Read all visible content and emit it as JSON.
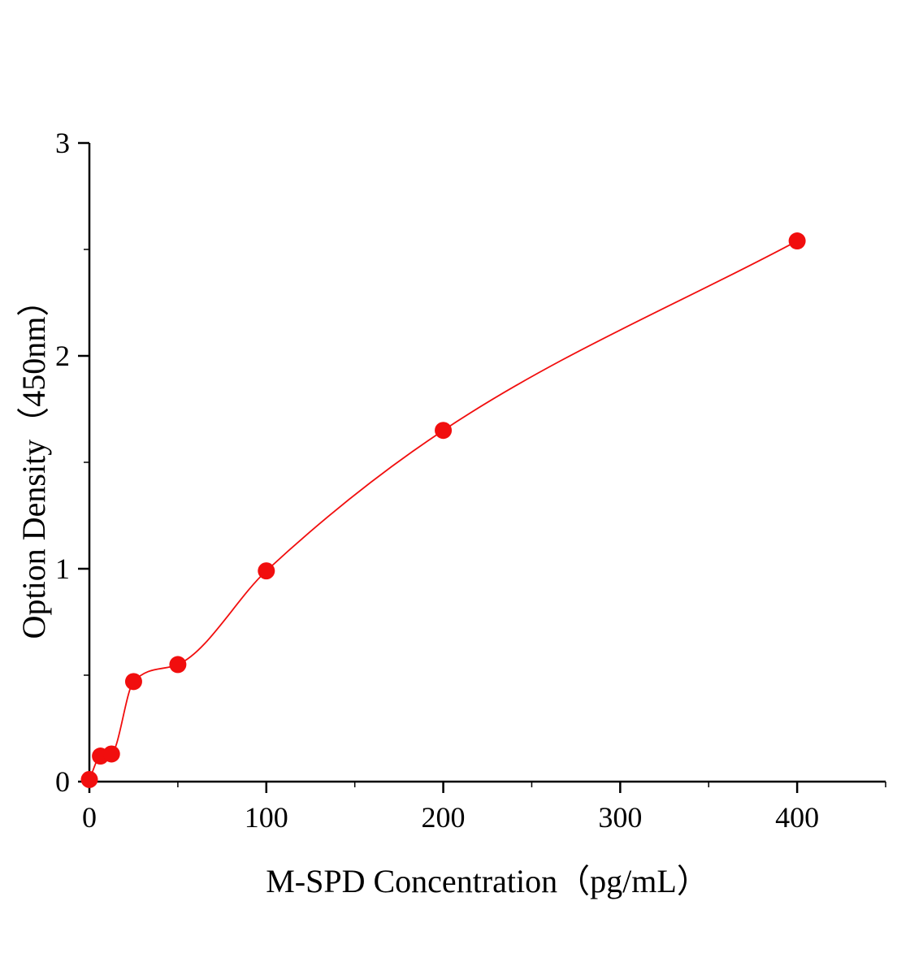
{
  "chart_data": {
    "type": "scatter",
    "title": "",
    "xlabel": "M-SPD Concentration（pg/mL）",
    "ylabel": "Option Density（450nm）",
    "x": [
      0,
      6.25,
      12.5,
      25,
      50,
      100,
      200,
      400
    ],
    "y": [
      0.01,
      0.12,
      0.13,
      0.47,
      0.55,
      0.99,
      1.65,
      2.54
    ],
    "xlim": [
      0,
      450
    ],
    "ylim": [
      0,
      3
    ],
    "xticks": [
      0,
      100,
      200,
      300,
      400
    ],
    "yticks": [
      0,
      1,
      2,
      3
    ],
    "x_minor_step": 50,
    "y_minor_step": 0.5,
    "marker_color": "#f10e0e",
    "line_color": "#f10e0e",
    "axis_color": "#000000",
    "grid": false,
    "legend": null
  }
}
